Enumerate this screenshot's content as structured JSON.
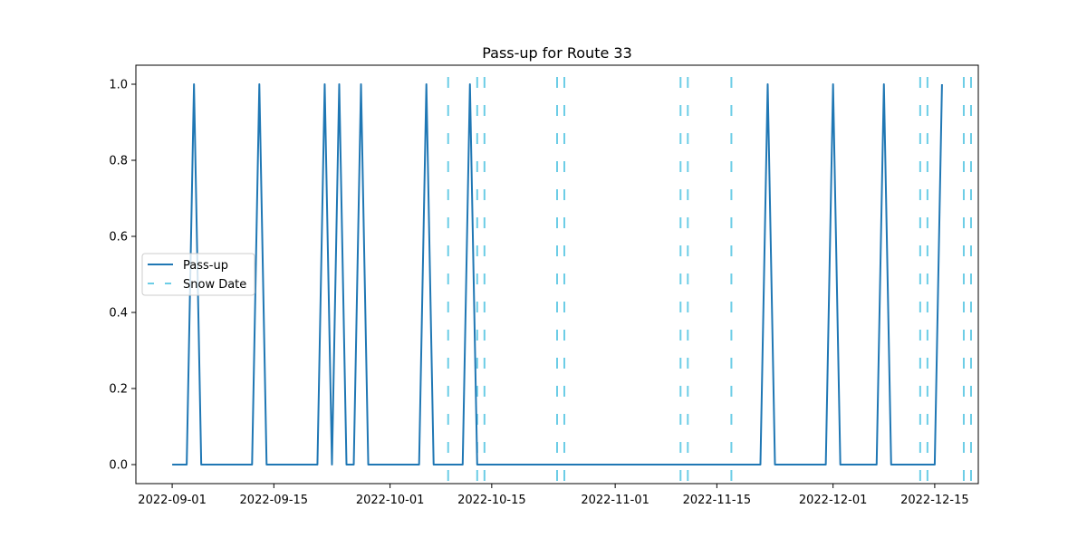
{
  "chart_data": {
    "type": "line",
    "title": "Pass-up for Route 33",
    "xlabel": "",
    "ylabel": "",
    "xlim": [
      "2022-08-27",
      "2022-12-21"
    ],
    "ylim": [
      -0.05,
      1.05
    ],
    "x_ticks": [
      "2022-09-01",
      "2022-09-15",
      "2022-10-01",
      "2022-10-15",
      "2022-11-01",
      "2022-11-15",
      "2022-12-01",
      "2022-12-15"
    ],
    "y_ticks": [
      "0.0",
      "0.2",
      "0.4",
      "0.6",
      "0.8",
      "1.0"
    ],
    "grid": false,
    "legend": {
      "position": "center-left",
      "entries": [
        {
          "label": "Pass-up",
          "style": "solid",
          "color": "#1f77b4"
        },
        {
          "label": "Snow Date",
          "style": "dashed",
          "color": "#6ccde6"
        }
      ]
    },
    "series": [
      {
        "name": "Pass-up",
        "color": "#1f77b4",
        "points": [
          [
            "2022-09-01",
            0
          ],
          [
            "2022-09-03",
            0
          ],
          [
            "2022-09-04",
            1
          ],
          [
            "2022-09-05",
            0
          ],
          [
            "2022-09-12",
            0
          ],
          [
            "2022-09-13",
            1
          ],
          [
            "2022-09-14",
            0
          ],
          [
            "2022-09-21",
            0
          ],
          [
            "2022-09-22",
            1
          ],
          [
            "2022-09-23",
            0
          ],
          [
            "2022-09-24",
            1
          ],
          [
            "2022-09-25",
            0
          ],
          [
            "2022-09-26",
            0
          ],
          [
            "2022-09-27",
            1
          ],
          [
            "2022-09-28",
            0
          ],
          [
            "2022-10-05",
            0
          ],
          [
            "2022-10-06",
            1
          ],
          [
            "2022-10-07",
            0
          ],
          [
            "2022-10-11",
            0
          ],
          [
            "2022-10-12",
            1
          ],
          [
            "2022-10-13",
            0
          ],
          [
            "2022-11-21",
            0
          ],
          [
            "2022-11-22",
            1
          ],
          [
            "2022-11-23",
            0
          ],
          [
            "2022-11-30",
            0
          ],
          [
            "2022-12-01",
            1
          ],
          [
            "2022-12-02",
            0
          ],
          [
            "2022-12-07",
            0
          ],
          [
            "2022-12-08",
            1
          ],
          [
            "2022-12-09",
            0
          ],
          [
            "2022-12-15",
            0
          ],
          [
            "2022-12-16",
            1
          ]
        ]
      }
    ],
    "snow_dates": [
      "2022-10-09",
      "2022-10-13",
      "2022-10-14",
      "2022-10-24",
      "2022-10-25",
      "2022-11-10",
      "2022-11-11",
      "2022-11-17",
      "2022-12-13",
      "2022-12-14",
      "2022-12-19",
      "2022-12-20"
    ]
  }
}
